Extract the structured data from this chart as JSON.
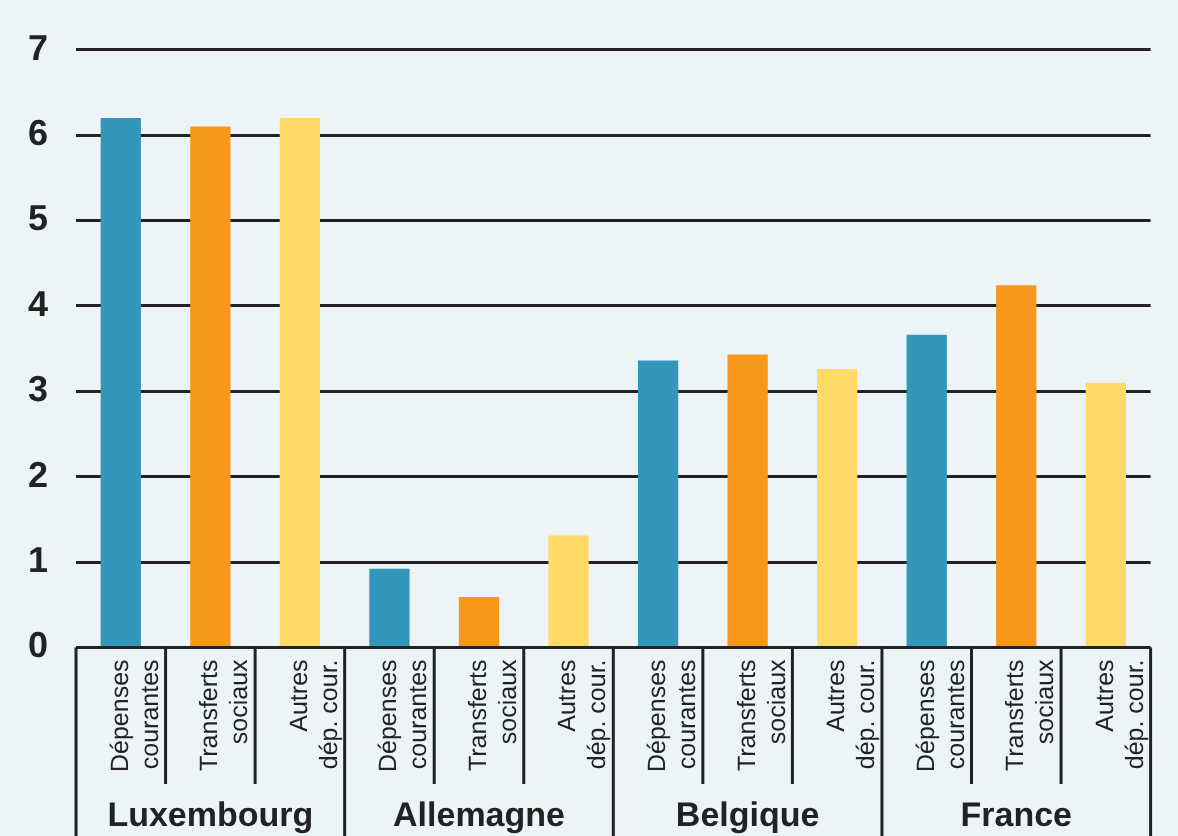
{
  "chart_data": {
    "type": "bar",
    "categories": [
      "Dépenses courantes",
      "Transferts sociaux",
      "Autres dép. cour.",
      "Dépenses courantes",
      "Transferts sociaux",
      "Autres dép. cour.",
      "Dépenses courantes",
      "Transferts sociaux",
      "Autres dép. cour.",
      "Dépenses courantes",
      "Transferts sociaux",
      "Autres dép. cour."
    ],
    "values": [
      6.2,
      6.1,
      6.2,
      0.92,
      0.59,
      1.31,
      3.36,
      3.43,
      3.26,
      3.66,
      4.24,
      3.1
    ],
    "colors": [
      "#3397bb",
      "#f7981d",
      "#ffda66",
      "#3397bb",
      "#f7981d",
      "#ffda66",
      "#3397bb",
      "#f7981d",
      "#ffda66",
      "#3397bb",
      "#f7981d",
      "#ffda66"
    ],
    "ylim": [
      0,
      7
    ],
    "yticks": [
      0,
      1,
      2,
      3,
      4,
      5,
      6,
      7
    ],
    "grid": "y",
    "annotations": [
      "Luxembourg",
      "Allemagne",
      "Belgique",
      "France"
    ]
  }
}
